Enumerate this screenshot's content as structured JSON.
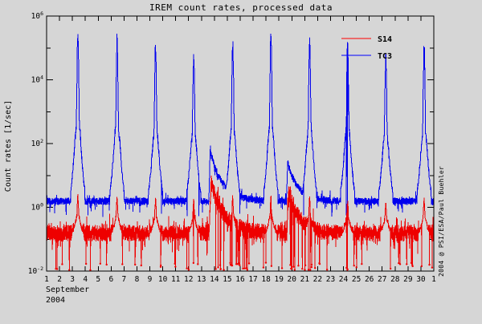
{
  "window": {
    "background": "#d6d6d6"
  },
  "chart_data": {
    "type": "line",
    "title": "IREM count rates, processed data",
    "ylabel": "Count rates [1/sec]",
    "watermark": "2004 @ PSI/ESA/Paul Buehler",
    "x_axis": {
      "month": "September",
      "year": "2004",
      "tick_labels": [
        "1",
        "2",
        "3",
        "4",
        "5",
        "6",
        "7",
        "8",
        "9",
        "10",
        "11",
        "12",
        "13",
        "14",
        "15",
        "16",
        "17",
        "18",
        "19",
        "20",
        "21",
        "22",
        "23",
        "24",
        "25",
        "26",
        "27",
        "28",
        "29",
        "30",
        "1"
      ]
    },
    "y_axis": {
      "labeled_ticks": [
        {
          "log": 6,
          "base": "10",
          "exp": "6"
        },
        {
          "log": 4,
          "base": "10",
          "exp": "4"
        },
        {
          "log": 2,
          "base": "10",
          "exp": "2"
        },
        {
          "log": 0,
          "base": "10",
          "exp": "0"
        },
        {
          "log": -2,
          "base": "10",
          "exp": "-2"
        }
      ],
      "minor_ticks": [
        5,
        3,
        1,
        -1
      ]
    },
    "xlim": [
      1,
      31
    ],
    "ylog_lim": [
      -2,
      6
    ],
    "grid": false,
    "legend_position": "top-right-inside",
    "legend": [
      {
        "label": "S14",
        "color": "#ff0000"
      },
      {
        "label": "TC3",
        "color": "#0000ff"
      }
    ],
    "series": [
      {
        "name": "TC3",
        "color": "#0000ee",
        "baseline": 1.55,
        "noise_dec": 0.115,
        "up_fringe_prob": 0.03,
        "up_fringe_dec": 0.25,
        "down_fringe_prob": 0.04,
        "down_fringe_dec": 0.35,
        "spike_sigma": 0.09,
        "spike_days": [
          3.42,
          6.46,
          9.44,
          12.4,
          15.42,
          18.38,
          21.38,
          24.32,
          27.28,
          30.25
        ],
        "spike_peaks": [
          320000,
          170000,
          95000,
          55000,
          140000,
          220000,
          150000,
          140000,
          45000,
          85000
        ],
        "humps": [
          {
            "day": 13.68,
            "peak": 58,
            "tau": 0.95,
            "rise": 0.12
          },
          {
            "day": 19.68,
            "peak": 25,
            "tau": 0.8,
            "rise": 0.1
          }
        ],
        "dropouts": {
          "count": 12,
          "depth": 0.55,
          "jitter_dec": 0.1,
          "marker": false,
          "extra_ranges": [],
          "extra_count": 0
        }
      },
      {
        "name": "S14",
        "color": "#ee0000",
        "baseline": 0.155,
        "noise_dec": 0.26,
        "up_fringe_prob": 0.05,
        "up_fringe_dec": 0.4,
        "down_fringe_prob": 0.07,
        "down_fringe_dec": 0.5,
        "spike_sigma": 0.06,
        "spike_days": [
          3.42,
          6.46,
          9.44,
          12.4,
          15.42,
          18.38,
          21.38,
          24.32,
          27.28,
          30.25
        ],
        "spike_peaks": [
          2.3,
          1.9,
          1.7,
          1.5,
          1.9,
          2.1,
          1.8,
          1.6,
          1.3,
          1.7
        ],
        "humps": [
          {
            "day": 13.74,
            "peak": 6.0,
            "tau": 1.05,
            "rise": 0.15
          },
          {
            "day": 19.74,
            "peak": 3.0,
            "tau": 0.85,
            "rise": 0.12
          }
        ],
        "dropouts": {
          "count": 52,
          "depth": 0.014,
          "jitter_dec": 0.12,
          "marker": true,
          "extra_ranges": [
            [
              14.0,
              16.6
            ],
            [
              19.9,
              22.2
            ]
          ],
          "extra_count": 24
        }
      }
    ]
  }
}
